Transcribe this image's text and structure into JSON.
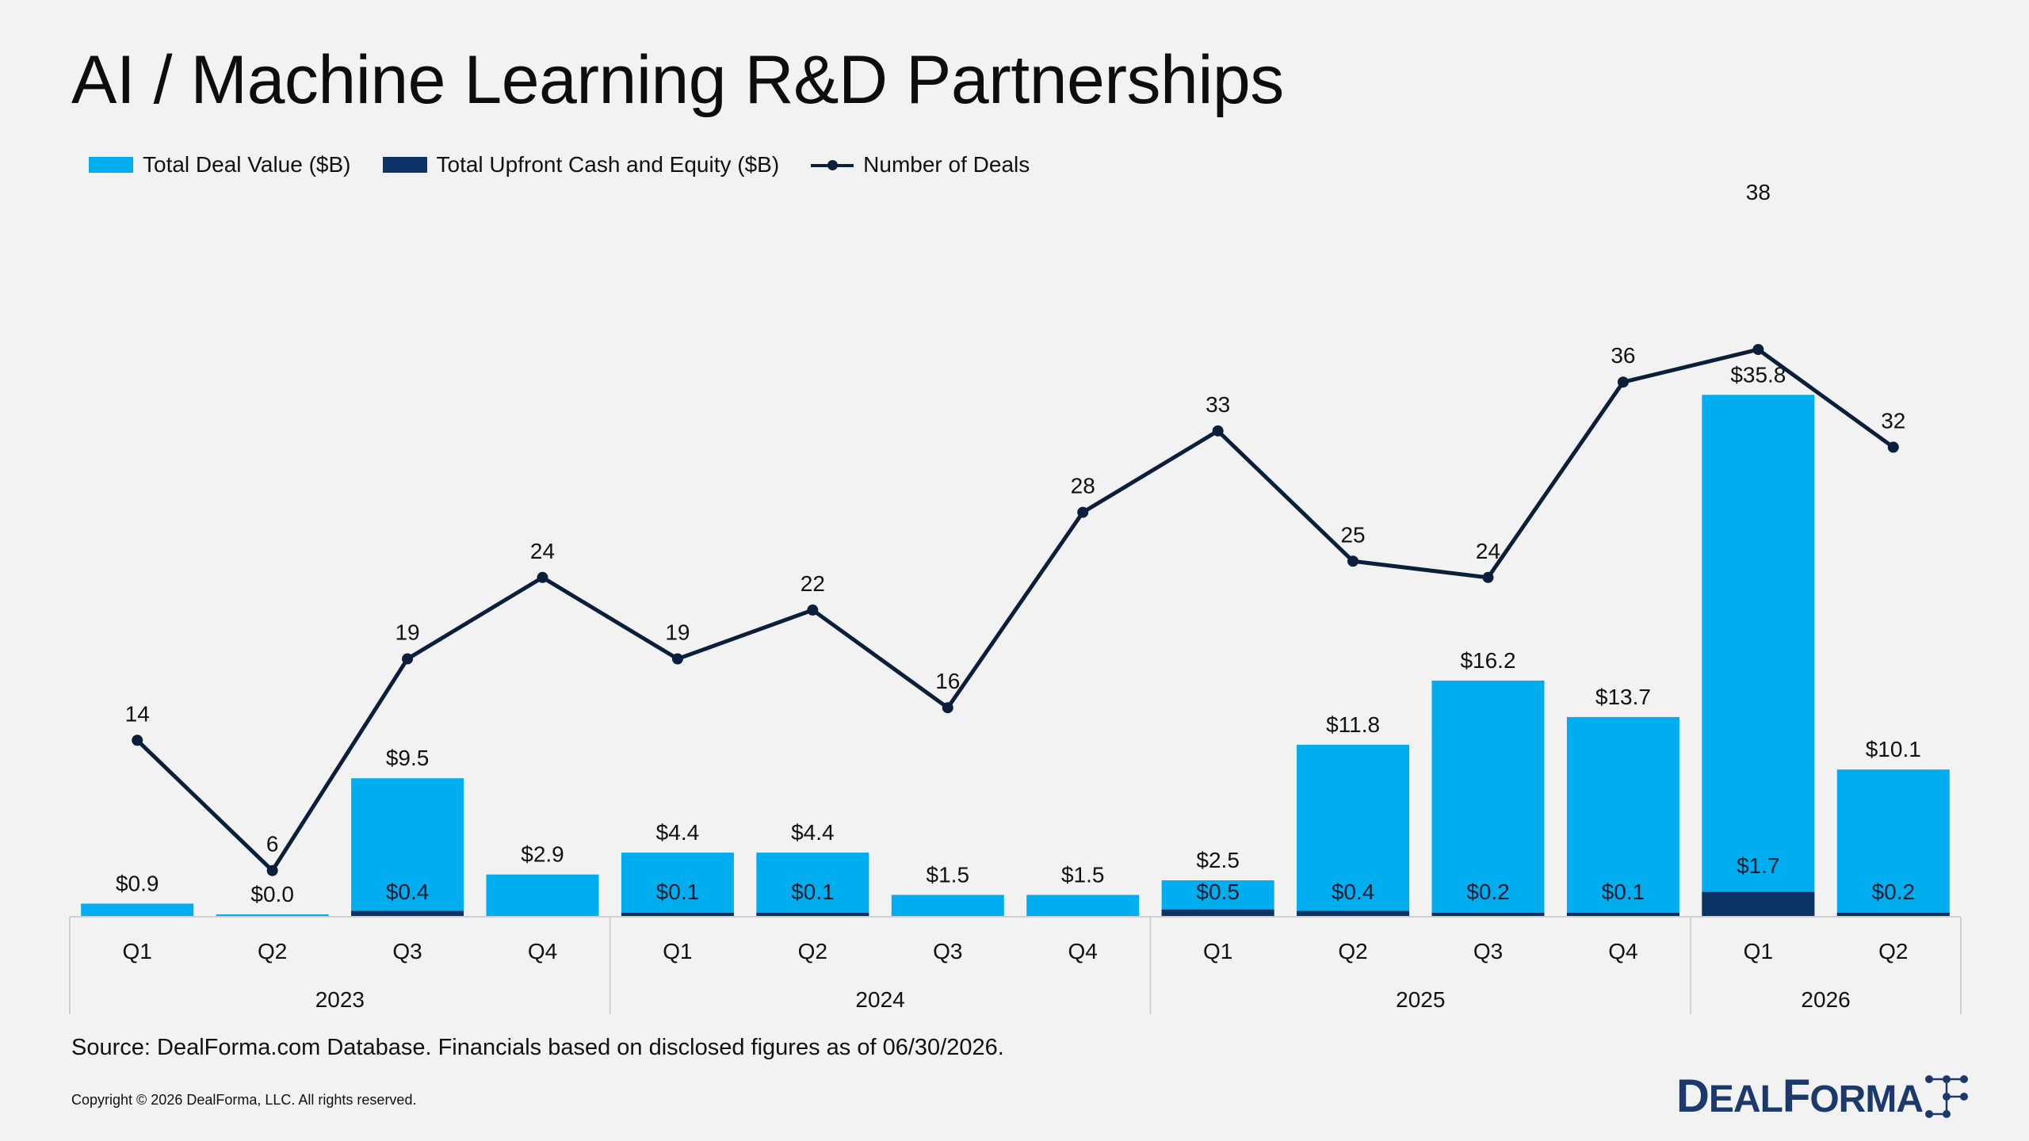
{
  "title": "AI / Machine Learning R&D Partnerships",
  "legend": {
    "total_value": "Total Deal Value ($B)",
    "upfront": "Total Upfront Cash and Equity ($B)",
    "deals": "Number of Deals"
  },
  "colors": {
    "total_value": "#00aeef",
    "upfront": "#0b3366",
    "deals_line": "#0b1f3a",
    "axis": "#d0d0d0"
  },
  "chart_data": {
    "type": "bar",
    "quarters": [
      "Q1",
      "Q2",
      "Q3",
      "Q4",
      "Q1",
      "Q2",
      "Q3",
      "Q4",
      "Q1",
      "Q2",
      "Q3",
      "Q4",
      "Q1",
      "Q2"
    ],
    "years": [
      {
        "label": "2023",
        "count": 4
      },
      {
        "label": "2024",
        "count": 4
      },
      {
        "label": "2025",
        "count": 4
      },
      {
        "label": "2026",
        "count": 2
      }
    ],
    "series": [
      {
        "name": "Total Deal Value ($B)",
        "values": [
          0.9,
          0.0,
          9.5,
          2.9,
          4.4,
          4.4,
          1.5,
          1.5,
          2.5,
          11.8,
          16.2,
          13.7,
          35.8,
          10.1
        ],
        "labels": [
          "$0.9",
          "$0.0",
          "$9.5",
          "$2.9",
          "$4.4",
          "$4.4",
          "$1.5",
          "$1.5",
          "$2.5",
          "$11.8",
          "$16.2",
          "$13.7",
          "$35.8",
          "$10.1"
        ]
      },
      {
        "name": "Total Upfront Cash and Equity ($B)",
        "values": [
          0,
          0,
          0.4,
          0,
          0.1,
          0.1,
          0,
          0,
          0.5,
          0.4,
          0.2,
          0.1,
          1.7,
          0.2
        ],
        "labels": [
          "",
          "",
          "$0.4",
          "",
          "$0.1",
          "$0.1",
          "",
          "",
          "$0.5",
          "$0.4",
          "$0.2",
          "$0.1",
          "$1.7",
          "$0.2"
        ]
      },
      {
        "name": "Number of Deals",
        "values": [
          14,
          6,
          19,
          24,
          19,
          22,
          16,
          28,
          33,
          25,
          24,
          36,
          38,
          32
        ]
      }
    ]
  },
  "source": "Source: DealForma.com Database. Financials based on disclosed figures as of 06/30/2026.",
  "copyright": "Copyright © 2026 DealForma, LLC. All rights reserved.",
  "logo": {
    "text": "DEALFORMA"
  }
}
